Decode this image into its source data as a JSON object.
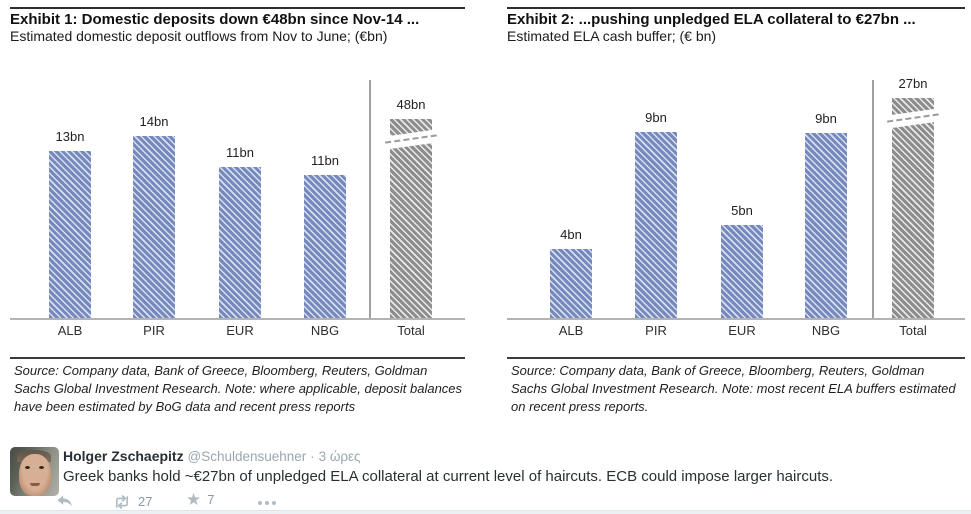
{
  "chart_data": [
    {
      "type": "bar",
      "exhibit_title": "Exhibit 1: Domestic deposits down €48bn since Nov-14 ...",
      "subtitle": "Estimated domestic deposit outflows from Nov to June; (€bn)",
      "categories": [
        "ALB",
        "PIR",
        "EUR",
        "NBG",
        "Total"
      ],
      "values": [
        13,
        14,
        11,
        11,
        48
      ],
      "value_labels": [
        "13bn",
        "14bn",
        "11bn",
        "11bn",
        "48bn"
      ],
      "total_bar_has_axis_break": true,
      "bar_color": "#7589bc",
      "bar_stripe_color": "#d8dfee",
      "total_bar_color": "#8d8d8d",
      "total_bar_stripe_color": "#e9e9e9",
      "source_note": "Source: Company data, Bank of Greece, Bloomberg, Reuters, Goldman Sachs Global Investment Research. Note: where applicable, deposit balances have been estimated by BoG data and recent press reports"
    },
    {
      "type": "bar",
      "exhibit_title": "Exhibit 2: ...pushing unpledged ELA collateral to €27bn ...",
      "subtitle": "Estimated ELA cash buffer; (€ bn)",
      "categories": [
        "ALB",
        "PIR",
        "EUR",
        "NBG",
        "Total"
      ],
      "values": [
        4,
        9,
        5,
        9,
        27
      ],
      "value_labels": [
        "4bn",
        "9bn",
        "5bn",
        "9bn",
        "27bn"
      ],
      "total_bar_has_axis_break": true,
      "bar_color": "#7589bc",
      "bar_stripe_color": "#d8dfee",
      "total_bar_color": "#8d8d8d",
      "total_bar_stripe_color": "#e9e9e9",
      "source_note": "Source: Company data, Bank of Greece, Bloomberg, Reuters, Goldman Sachs Global Investment Research. Note: most recent ELA buffers estimated on recent press reports."
    }
  ],
  "tweet": {
    "author_name": "Holger Zschaepitz",
    "handle": "@Schuldensuehner",
    "meta_separator": "·",
    "timestamp": "3 ώρες",
    "body": "Greek banks hold ~€27bn of unpledged ELA collateral at current level of haircuts. ECB could impose larger haircuts.",
    "actions": {
      "retweet_count": "27",
      "favorite_count": "7"
    },
    "colors": {
      "icon": "#b1bbc3",
      "count": "#8899a6",
      "author": "#292f33",
      "meta": "#99a6ae"
    }
  }
}
